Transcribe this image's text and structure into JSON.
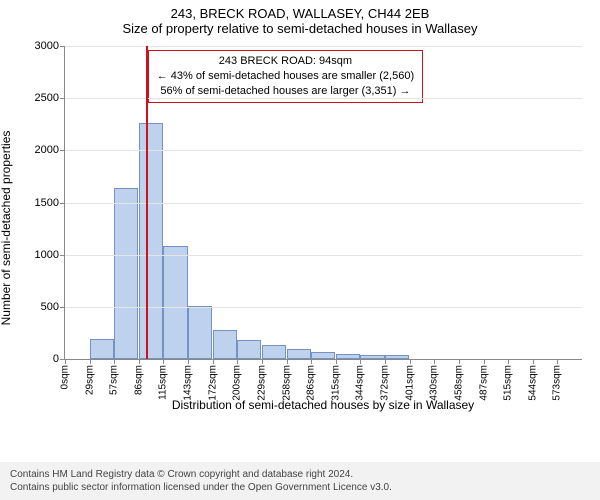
{
  "title": "243, BRECK ROAD, WALLASEY, CH44 2EB",
  "subtitle": "Size of property relative to semi-detached houses in Wallasey",
  "ylabel": "Number of semi-detached properties",
  "xlabel": "Distribution of semi-detached houses by size in Wallasey",
  "chart": {
    "type": "histogram",
    "ylim": [
      0,
      3000
    ],
    "ytick_step": 500,
    "bar_fill": "rgba(137,172,222,0.55)",
    "bar_border": "rgba(99,130,182,0.8)",
    "grid_color": "#e4e4e4",
    "axis_color": "#888",
    "marker_line_color": "#cf1020",
    "marker_x_value": 94,
    "x_categories": [
      "0sqm",
      "29sqm",
      "57sqm",
      "86sqm",
      "115sqm",
      "143sqm",
      "172sqm",
      "200sqm",
      "229sqm",
      "258sqm",
      "286sqm",
      "315sqm",
      "344sqm",
      "372sqm",
      "401sqm",
      "430sqm",
      "458sqm",
      "487sqm",
      "515sqm",
      "544sqm",
      "573sqm"
    ],
    "values": [
      0,
      190,
      1640,
      2260,
      1080,
      510,
      280,
      180,
      130,
      100,
      70,
      50,
      40,
      40,
      0,
      0,
      0,
      0,
      0,
      0,
      0
    ],
    "background": "#ffffff"
  },
  "info_box": {
    "line1": "243 BRECK ROAD: 94sqm",
    "line2": "← 43% of semi-detached houses are smaller (2,560)",
    "line3": "56% of semi-detached houses are larger (3,351) →",
    "border_color": "#cf1020"
  },
  "legal": {
    "line1": "Contains HM Land Registry data © Crown copyright and database right 2024.",
    "line2": "Contains public sector information licensed under the Open Government Licence v3.0."
  },
  "fonts": {
    "title_size": 13,
    "axis_label_size": 12,
    "tick_size": 11,
    "xtick_size": 10,
    "info_size": 11,
    "legal_size": 10
  }
}
